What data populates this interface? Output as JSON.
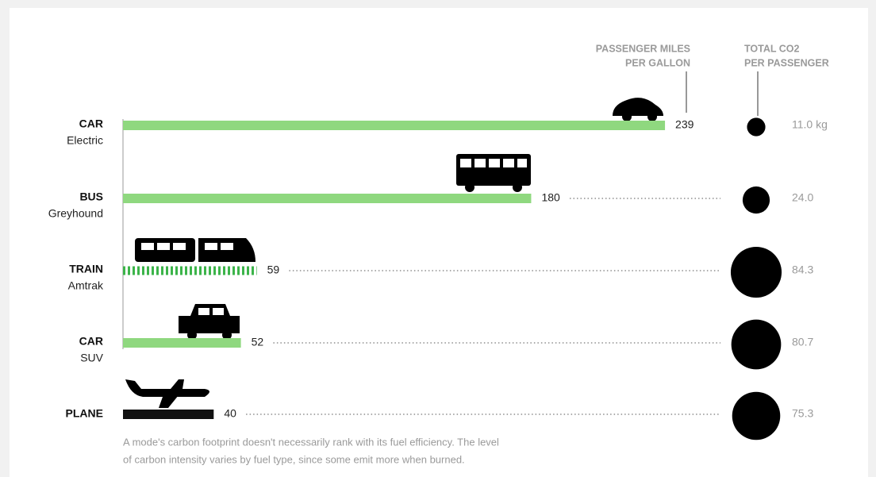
{
  "chart_data": {
    "type": "bar",
    "bar_header": [
      "PASSENGER MILES",
      "PER GALLON"
    ],
    "bubble_header": [
      "TOTAL CO2",
      "PER PASSENGER"
    ],
    "categories": [
      "CAR",
      "BUS",
      "TRAIN",
      "CAR",
      "PLANE"
    ],
    "subcategories": [
      "Electric",
      "Greyhound",
      "Amtrak",
      "SUV",
      null
    ],
    "values": [
      239,
      180,
      59,
      52,
      40
    ],
    "colors": [
      "#8fd87f",
      "#8fd87f",
      "#3cb44a",
      "#8fd87f",
      "#111111"
    ],
    "patterns": [
      "solid",
      "solid",
      "dashed",
      "solid",
      "solid"
    ],
    "sizes": [
      11.0,
      24.0,
      84.3,
      80.7,
      75.3
    ],
    "size_labels": [
      "11.0 kg",
      "24.0",
      "84.3",
      "80.7",
      "75.3"
    ],
    "bubble_color": "#000000",
    "note": [
      "A mode's carbon footprint doesn't necessarily rank with its fuel efficiency. The level",
      "of carbon intensity varies by fuel type, since some emit more when burned."
    ]
  }
}
